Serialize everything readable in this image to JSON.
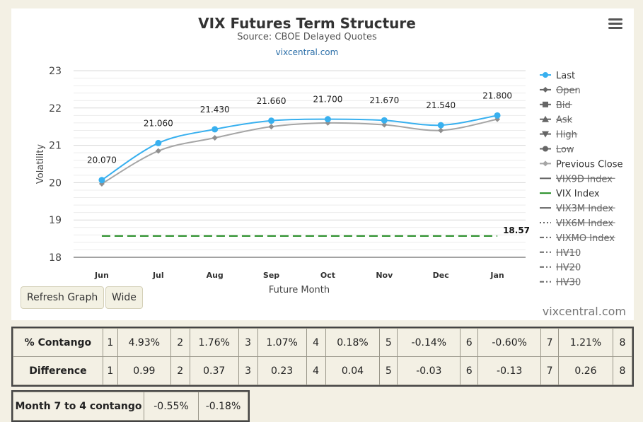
{
  "chart_data": {
    "type": "line",
    "title": "VIX Futures Term Structure",
    "subtitle": "Source: CBOE Delayed Quotes",
    "source_link": "vixcentral.com",
    "xlabel": "Future Month",
    "ylabel": "Volatility",
    "categories": [
      "Jun",
      "Jul",
      "Aug",
      "Sep",
      "Oct",
      "Nov",
      "Dec",
      "Jan"
    ],
    "ylim": [
      18,
      23
    ],
    "yticks": [
      "18",
      "19",
      "20",
      "21",
      "22",
      "23"
    ],
    "grid": true,
    "legend_position": "right",
    "series": [
      {
        "name": "Last",
        "color": "#38b0ef",
        "values": [
          20.07,
          21.06,
          21.43,
          21.66,
          21.7,
          21.67,
          21.54,
          21.8
        ],
        "labels": [
          "20.070",
          "21.060",
          "21.430",
          "21.660",
          "21.700",
          "21.670",
          "21.540",
          "21.800"
        ]
      },
      {
        "name": "Previous Close",
        "color": "#a5a5a5",
        "values": [
          19.97,
          20.85,
          21.2,
          21.5,
          21.6,
          21.55,
          21.4,
          21.7
        ]
      },
      {
        "name": "VIX Index",
        "color": "#1f8a1f",
        "style": "dashed",
        "value": 18.57,
        "label": "18.57"
      }
    ],
    "legend": [
      {
        "name": "Last",
        "active": true,
        "icon": "circle-icon",
        "color": "#38b0ef"
      },
      {
        "name": "Open",
        "active": false,
        "icon": "diamond-icon",
        "color": "#666666"
      },
      {
        "name": "Bid",
        "active": false,
        "icon": "square-icon",
        "color": "#666666"
      },
      {
        "name": "Ask",
        "active": false,
        "icon": "triangle-icon",
        "color": "#666666"
      },
      {
        "name": "High",
        "active": false,
        "icon": "triangle-down-icon",
        "color": "#666666"
      },
      {
        "name": "Low",
        "active": false,
        "icon": "circle-icon",
        "color": "#666666"
      },
      {
        "name": "Previous Close",
        "active": true,
        "icon": "diamond-icon",
        "color": "#a5a5a5"
      },
      {
        "name": "VIX9D Index",
        "active": false,
        "icon": "line-icon",
        "color": "#666666"
      },
      {
        "name": "VIX Index",
        "active": true,
        "icon": "line-icon",
        "color": "#1f8a1f"
      },
      {
        "name": "VIX3M Index",
        "active": false,
        "icon": "line-icon",
        "color": "#666666"
      },
      {
        "name": "VIX6M Index",
        "active": false,
        "icon": "dotted-line-icon",
        "color": "#666666"
      },
      {
        "name": "VIXMO Index",
        "active": false,
        "icon": "dash-dot-line-icon",
        "color": "#666666"
      },
      {
        "name": "HV10",
        "active": false,
        "icon": "dash-dot-line-icon",
        "color": "#666666"
      },
      {
        "name": "HV20",
        "active": false,
        "icon": "dash-dot-line-icon",
        "color": "#666666"
      },
      {
        "name": "HV30",
        "active": false,
        "icon": "dash-dot-line-icon",
        "color": "#666666"
      }
    ]
  },
  "menu_icon": "hamburger-menu-icon",
  "buttons": {
    "refresh": "Refresh Graph",
    "wide": "Wide"
  },
  "credit": "vixcentral.com",
  "contango_table": {
    "rows": [
      {
        "label": "% Contango",
        "cells": [
          "1",
          "4.93%",
          "2",
          "1.76%",
          "3",
          "1.07%",
          "4",
          "0.18%",
          "5",
          "-0.14%",
          "6",
          "-0.60%",
          "7",
          "1.21%",
          "8"
        ]
      },
      {
        "label": "Difference",
        "cells": [
          "1",
          "0.99",
          "2",
          "0.37",
          "3",
          "0.23",
          "4",
          "0.04",
          "5",
          "-0.03",
          "6",
          "-0.13",
          "7",
          "0.26",
          "8"
        ]
      }
    ]
  },
  "month_table": {
    "label": "Month 7 to 4 contango",
    "values": [
      "-0.55%",
      "-0.18%"
    ]
  }
}
